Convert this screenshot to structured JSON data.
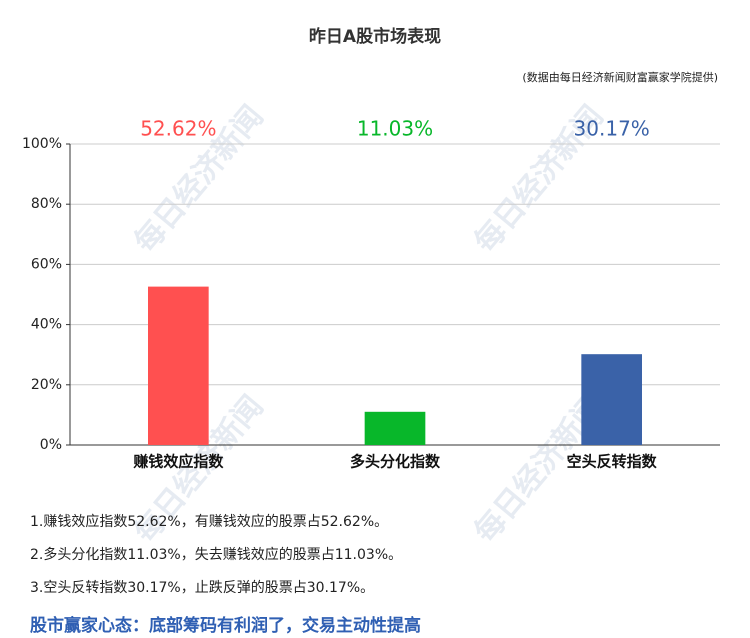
{
  "chart_data": {
    "type": "bar",
    "title": "昨日A股市场表现",
    "subtitle": "(数据由每日经济新闻财富赢家学院提供)",
    "categories": [
      "赚钱效应指数",
      "多头分化指数",
      "空头反转指数"
    ],
    "values": [
      52.62,
      11.03,
      30.17
    ],
    "value_labels": [
      "52.62%",
      "11.03%",
      "30.17%"
    ],
    "colors": [
      "#ff5050",
      "#08b72a",
      "#3a62a8"
    ],
    "ylim": [
      0,
      100
    ],
    "yticks": [
      {
        "value": 0,
        "label": "0%"
      },
      {
        "value": 20,
        "label": "20%"
      },
      {
        "value": 40,
        "label": "40%"
      },
      {
        "value": 60,
        "label": "60%"
      },
      {
        "value": 80,
        "label": "80%"
      },
      {
        "value": 100,
        "label": "100%"
      }
    ],
    "grid": true
  },
  "watermark": "每日经济新闻",
  "notes": [
    "1.赚钱效应指数52.62%，有赚钱效应的股票占52.62%。",
    "2.多头分化指数11.03%，失去赚钱效应的股票占11.03%。",
    "3.空头反转指数30.17%，止跌反弹的股票占30.17%。"
  ],
  "conclusion": "股市赢家心态：底部筹码有利润了，交易主动性提高"
}
